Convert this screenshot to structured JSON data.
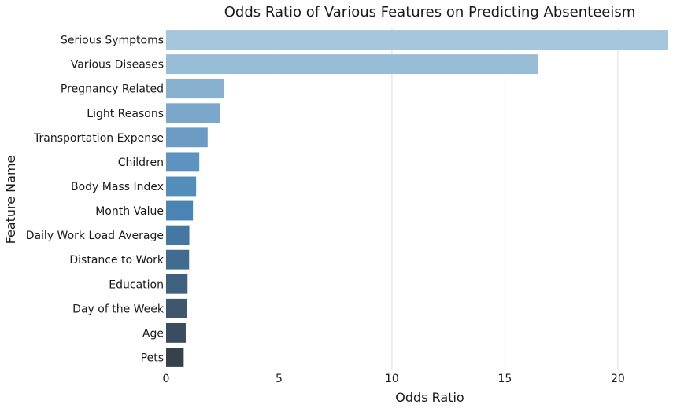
{
  "chart_data": {
    "type": "bar",
    "orientation": "horizontal",
    "title": "Odds Ratio of Various Features on Predicting Absenteeism",
    "xlabel": "Odds Ratio",
    "ylabel": "Feature Name",
    "xlim": [
      0,
      22.2
    ],
    "xticks": [
      0,
      5,
      10,
      15,
      20
    ],
    "grid": "vertical",
    "legend": "none",
    "categories": [
      "Serious Symptoms",
      "Various Diseases",
      "Pregnancy Related",
      "Light Reasons",
      "Transportation Expense",
      "Children",
      "Body Mass Index",
      "Month Value",
      "Daily Work Load Average",
      "Distance to Work",
      "Education",
      "Day of the Week",
      "Age",
      "Pets"
    ],
    "values": [
      22.3,
      16.45,
      2.58,
      2.39,
      1.84,
      1.47,
      1.33,
      1.19,
      1.03,
      1.02,
      0.95,
      0.94,
      0.87,
      0.78
    ],
    "colors": [
      "#a4c5da",
      "#97bcd5",
      "#88b0cf",
      "#7ba7ca",
      "#6c9cc3",
      "#5d93bf",
      "#538dba",
      "#4a84b2",
      "#4478a3",
      "#426c8f",
      "#40617e",
      "#3e576f",
      "#3a4c5f",
      "#36414b"
    ],
    "grid_color": "#dcdcdc"
  }
}
